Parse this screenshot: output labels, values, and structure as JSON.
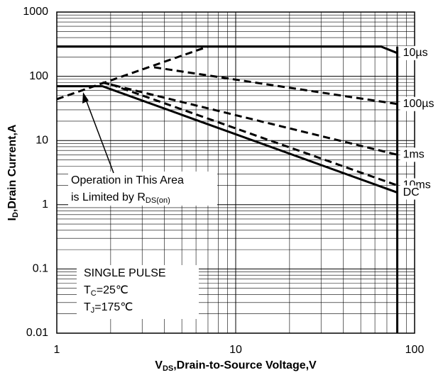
{
  "chart_data": {
    "type": "line",
    "log_x": true,
    "log_y": true,
    "grid": true,
    "xlabel": {
      "main": "V",
      "sub": "DS",
      "rest": ",Drain-to-Source Voltage,V"
    },
    "ylabel": {
      "main": "I",
      "sub": "D",
      "rest": ",Drain Current,A"
    },
    "xlim": [
      1,
      100
    ],
    "xticks": [
      1,
      10,
      100
    ],
    "ylim": [
      0.01,
      1000
    ],
    "yticks": [
      0.01,
      0.1,
      1,
      10,
      100,
      1000
    ],
    "color": "#000000",
    "series": [
      {
        "name": "10µs",
        "dashed": false,
        "x": [
          1,
          65,
          80
        ],
        "values": [
          290,
          290,
          230
        ]
      },
      {
        "name": "100µs",
        "dashed": true,
        "x": [
          3.5,
          80
        ],
        "values": [
          138,
          37
        ]
      },
      {
        "name": "1ms",
        "dashed": true,
        "x": [
          1.8,
          80
        ],
        "values": [
          80,
          6
        ]
      },
      {
        "name": "10ms",
        "dashed": true,
        "x": [
          2,
          80
        ],
        "values": [
          75,
          2
        ]
      },
      {
        "name": "DC",
        "dashed": false,
        "x": [
          1,
          1.8,
          80
        ],
        "values": [
          70,
          70,
          1.55
        ]
      },
      {
        "dashed": false,
        "x": [
          80,
          80
        ],
        "values": [
          290,
          0.01
        ]
      },
      {
        "dashed": true,
        "x": [
          1,
          7
        ],
        "values": [
          44,
          290
        ]
      }
    ],
    "annotations": {
      "area": [
        {
          "main": "Operation in This Area"
        },
        {
          "main": "is Limited by R",
          "sub": "DS(on)"
        }
      ],
      "conditions": [
        {
          "main": "SINGLE PULSE"
        },
        {
          "main": "T",
          "sub": "C",
          "rest": "=25℃"
        },
        {
          "main": "T",
          "sub": "J",
          "rest": "=175℃"
        }
      ]
    }
  }
}
